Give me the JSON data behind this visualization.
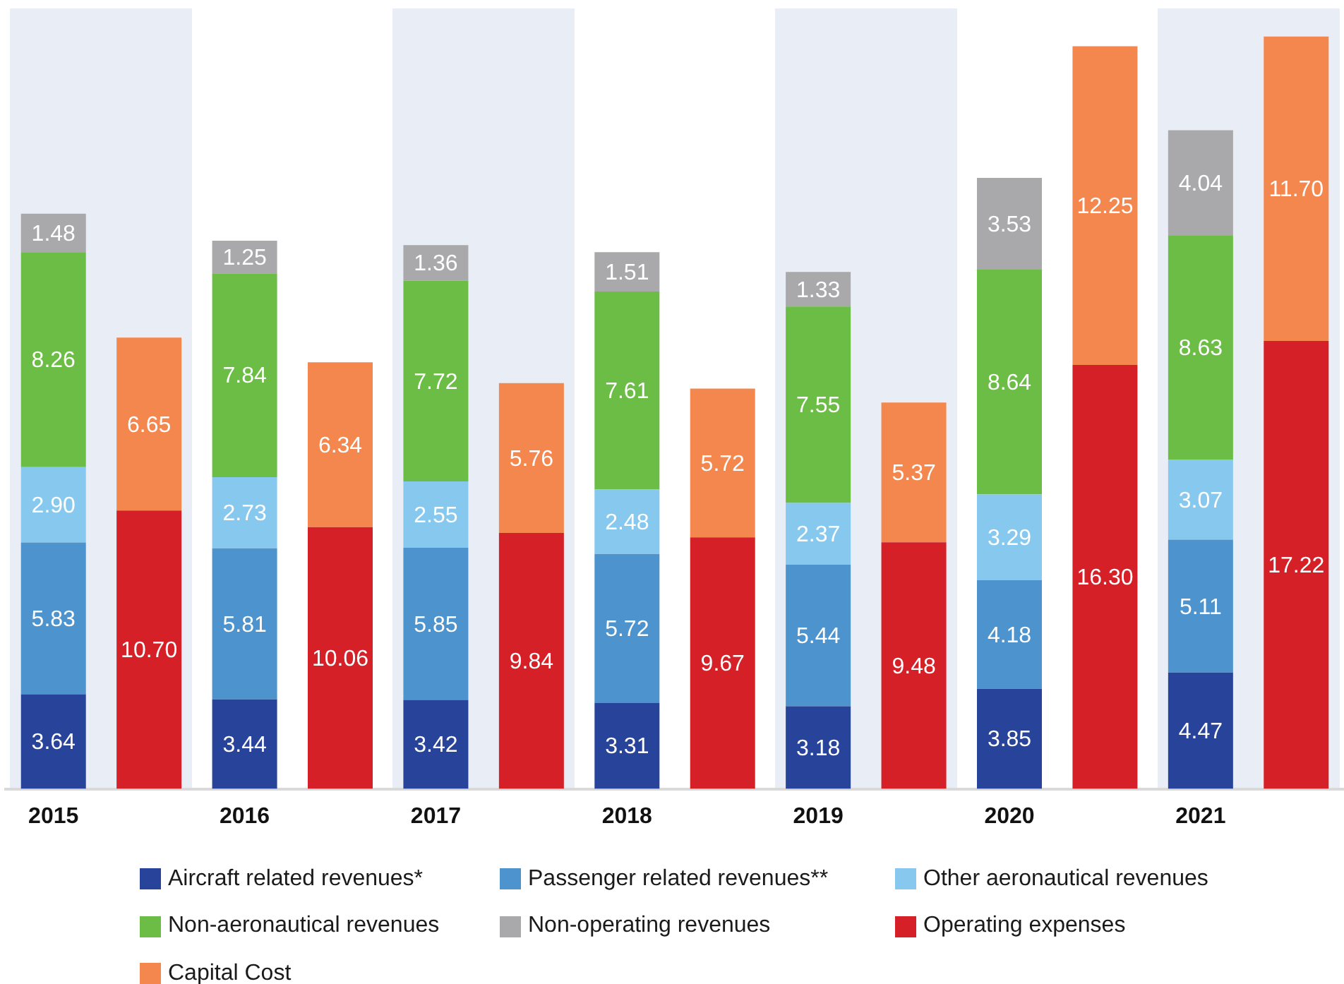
{
  "chart_data": {
    "type": "bar",
    "stacked": true,
    "legend": "bottom",
    "tick_labels": "x",
    "categories": [
      "2015",
      null,
      "2016",
      null,
      "2017",
      null,
      "2018",
      null,
      "2019",
      null,
      "2020",
      null,
      "2021",
      null
    ],
    "series": [
      {
        "name": "Aircraft related revenues*",
        "color": "#28449a",
        "values": [
          3.64,
          null,
          3.44,
          null,
          3.42,
          null,
          3.31,
          null,
          3.18,
          null,
          3.85,
          null,
          4.47,
          null
        ],
        "value_labels": [
          "3.64",
          null,
          "3.44",
          null,
          "3.42",
          null,
          "3.31",
          null,
          "3.18",
          null,
          "3.85",
          null,
          "4.47",
          null
        ]
      },
      {
        "name": "Passenger related revenues**",
        "color": "#4d93cd",
        "values": [
          5.83,
          null,
          5.81,
          null,
          5.85,
          null,
          5.72,
          null,
          5.44,
          null,
          4.18,
          null,
          5.11,
          null
        ],
        "value_labels": [
          "5.83",
          null,
          "5.81",
          null,
          "5.85",
          null,
          "5.72",
          null,
          "5.44",
          null,
          "4.18",
          null,
          "5.11",
          null
        ]
      },
      {
        "name": "Other aeronautical revenues",
        "color": "#86c8ee",
        "values": [
          2.9,
          null,
          2.73,
          null,
          2.55,
          null,
          2.48,
          null,
          2.37,
          null,
          3.29,
          null,
          3.07,
          null
        ],
        "value_labels": [
          "2.90",
          null,
          "2.73",
          null,
          "2.55",
          null,
          "2.48",
          null,
          "2.37",
          null,
          "3.29",
          null,
          "3.07",
          null
        ]
      },
      {
        "name": "Non-aeronautical revenues",
        "color": "#6bbd45",
        "values": [
          8.26,
          null,
          7.84,
          null,
          7.72,
          null,
          7.61,
          null,
          7.55,
          null,
          8.64,
          null,
          8.63,
          null
        ],
        "value_labels": [
          "8.26",
          null,
          "7.84",
          null,
          "7.72",
          null,
          "7.61",
          null,
          "7.55",
          null,
          "8.64",
          null,
          "8.63",
          null
        ]
      },
      {
        "name": "Non-operating revenues",
        "color": "#a9a8aa",
        "values": [
          1.48,
          null,
          1.25,
          null,
          1.36,
          null,
          1.51,
          null,
          1.33,
          null,
          3.53,
          null,
          4.04,
          null
        ],
        "value_labels": [
          "1.48",
          null,
          "1.25",
          null,
          "1.36",
          null,
          "1.51",
          null,
          "1.33",
          null,
          "3.53",
          null,
          "4.04",
          null
        ]
      },
      {
        "name": "Operating expenses",
        "color": "#d52027",
        "values": [
          null,
          10.7,
          null,
          10.06,
          null,
          9.84,
          null,
          9.67,
          null,
          9.48,
          null,
          16.3,
          null,
          17.22
        ],
        "value_labels": [
          null,
          "10.70",
          null,
          "10.06",
          null,
          "9.84",
          null,
          "9.67",
          null,
          "9.48",
          null,
          "16.30",
          null,
          "17.22"
        ]
      },
      {
        "name": "Capital Cost",
        "color": "#f4874d",
        "values": [
          null,
          6.65,
          null,
          6.34,
          null,
          5.76,
          null,
          5.72,
          null,
          5.37,
          null,
          12.25,
          null,
          11.7
        ],
        "value_labels": [
          null,
          "6.65",
          null,
          "6.34",
          null,
          "5.76",
          null,
          "5.72",
          null,
          "5.37",
          null,
          "12.25",
          null,
          "11.70"
        ]
      }
    ]
  }
}
